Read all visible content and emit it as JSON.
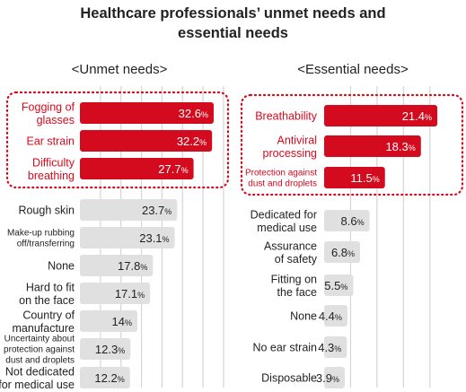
{
  "title_line1": "Healthcare professionals’ unmet needs and",
  "title_line2": "essential needs",
  "colors": {
    "highlight": "#d40a1e",
    "bar": "#e0e0e0",
    "text": "#222222",
    "grid": "#d6d6d6"
  },
  "chart_data": [
    {
      "type": "bar",
      "orientation": "horizontal",
      "title": "<Unmet needs>",
      "unit": "%",
      "categories": [
        "Fogging of glasses",
        "Ear strain",
        "Difficulty breathing",
        "Rough skin",
        "Make-up rubbing off/transferring",
        "None",
        "Hard to fit on the face",
        "Country of manufacture",
        "Uncertainty about protection against dust and droplets",
        "Not dedicated for medical use"
      ],
      "labels": [
        [
          "Fogging of",
          "glasses"
        ],
        [
          "Ear strain"
        ],
        [
          "Difficulty",
          "breathing"
        ],
        [
          "Rough skin"
        ],
        [
          "Make-up rubbing",
          "off/transferring"
        ],
        [
          "None"
        ],
        [
          "Hard to fit",
          "on the face"
        ],
        [
          "Country of",
          "manufacture"
        ],
        [
          "Uncertainty about",
          "protection against",
          "dust and droplets"
        ],
        [
          "Not dedicated",
          "for medical use"
        ]
      ],
      "values": [
        32.6,
        32.2,
        27.7,
        23.7,
        23.1,
        17.8,
        17.1,
        14,
        12.3,
        12.2
      ],
      "value_labels": [
        "32.6",
        "32.2",
        "27.7",
        "23.7",
        "23.1",
        "17.8",
        "17.1",
        "14",
        "12.3",
        "12.2"
      ],
      "highlighted": [
        true,
        true,
        true,
        false,
        false,
        false,
        false,
        false,
        false,
        false
      ],
      "xlim": [
        0,
        35
      ],
      "grid": true
    },
    {
      "type": "bar",
      "orientation": "horizontal",
      "title": "<Essential needs>",
      "unit": "%",
      "categories": [
        "Breathability",
        "Antiviral processing",
        "Protection against dust and droplets",
        "Dedicated for medical use",
        "Assurance of safety",
        "Fitting on the face",
        "None",
        "No ear strain",
        "Disposable"
      ],
      "labels": [
        [
          "Breathability"
        ],
        [
          "Antiviral",
          "processing"
        ],
        [
          "Protection against",
          "dust and droplets"
        ],
        [
          "Dedicated for",
          "medical use"
        ],
        [
          "Assurance",
          "of safety"
        ],
        [
          "Fitting on",
          "the face"
        ],
        [
          "None"
        ],
        [
          "No ear strain"
        ],
        [
          "Disposable"
        ]
      ],
      "values": [
        21.4,
        18.3,
        11.5,
        8.6,
        6.8,
        5.5,
        4.4,
        4.3,
        3.9
      ],
      "value_labels": [
        "21.4",
        "18.3",
        "11.5",
        "8.6",
        "6.8",
        "5.5",
        "4.4",
        "4.3",
        "3.9"
      ],
      "highlighted": [
        true,
        true,
        true,
        false,
        false,
        false,
        false,
        false,
        false
      ],
      "xlim": [
        0,
        23
      ],
      "grid": true
    }
  ]
}
